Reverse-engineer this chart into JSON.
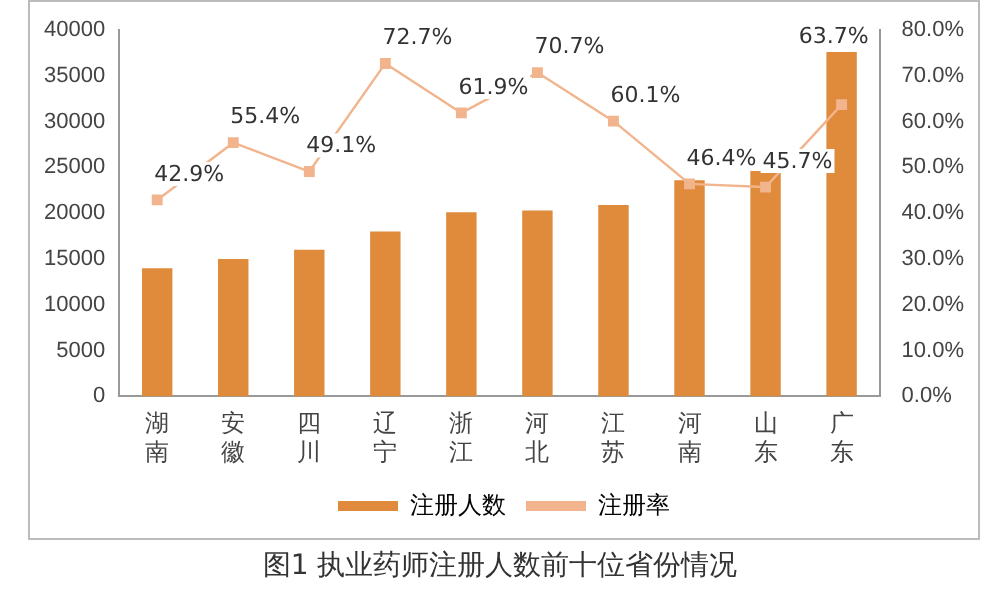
{
  "chart_data": {
    "type": "bar",
    "title": "图1 执业药师注册人数前十位省份情况",
    "categories": [
      "湖南",
      "安徽",
      "四川",
      "辽宁",
      "浙江",
      "河北",
      "江苏",
      "河南",
      "山东",
      "广东"
    ],
    "series": [
      {
        "name": "注册人数",
        "color": "#e08a3c",
        "values": [
          14000,
          15000,
          16000,
          18000,
          20100,
          20300,
          20900,
          23600,
          24600,
          37600
        ]
      },
      {
        "name": "注册率",
        "type": "line",
        "axis": "y2",
        "color": "#f2b48c",
        "values": [
          42.9,
          55.4,
          49.1,
          72.7,
          61.9,
          70.7,
          60.1,
          46.4,
          45.7,
          63.7
        ],
        "value_labels": [
          "42.9%",
          "55.4%",
          "49.1%",
          "72.7%",
          "61.9%",
          "70.7%",
          "60.1%",
          "46.4%",
          "45.7%",
          "63.7%"
        ]
      }
    ],
    "ylim": [
      0,
      40000
    ],
    "yticks": [
      0,
      5000,
      10000,
      15000,
      20000,
      25000,
      30000,
      35000,
      40000
    ],
    "y2lim": [
      0,
      80
    ],
    "y2ticks": [
      {
        "value": 0,
        "label": "0.0%"
      },
      {
        "value": 10,
        "label": "10.0%"
      },
      {
        "value": 20,
        "label": "20.0%"
      },
      {
        "value": 30,
        "label": "30.0%"
      },
      {
        "value": 40,
        "label": "40.0%"
      },
      {
        "value": 50,
        "label": "50.0%"
      },
      {
        "value": 60,
        "label": "60.0%"
      },
      {
        "value": 70,
        "label": "70.0%"
      },
      {
        "value": 80,
        "label": "80.0%"
      }
    ],
    "grid": false,
    "legend": "bottom",
    "marker": "square",
    "line_style": "solid"
  }
}
